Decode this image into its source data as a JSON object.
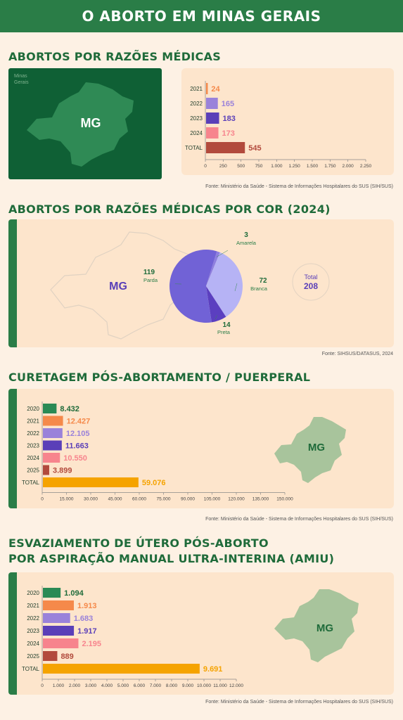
{
  "header": {
    "title": "O aborto em Minas Gerais"
  },
  "sections": {
    "s1": {
      "title": "Abortos por razões médicas",
      "source": "Fonte: Ministério da Saúde - Sistema de Informações Hospitalares do SUS (SIH/SUS)",
      "map_label": "MG",
      "map_caption": "Minas\nGerais"
    },
    "s2": {
      "title": "Abortos por razões médicas por cor (2024)",
      "source": "Fonte: SIHSUS/DATASUS, 2024",
      "map_label": "MG",
      "total_label": "Total",
      "total_value": "208"
    },
    "s3": {
      "title": "Curetagem pós-abortamento / puerperal",
      "source": "Fonte: Ministério da Saúde - Sistema de Informações Hospitalares do SUS (SIH/SUS)",
      "map_label": "MG"
    },
    "s4": {
      "title_line1": "Esvaziamento de útero pós-aborto",
      "title_line2": "por aspiração manual ultra-interina (AMIU)",
      "source": "Fonte: Ministério da Saúde - Sistema de Informações Hospitalares do SUS (SIH/SUS)",
      "map_label": "MG"
    }
  },
  "chart_data": [
    {
      "type": "bar",
      "orientation": "horizontal",
      "categories": [
        "2021",
        "2022",
        "2023",
        "2024",
        "TOTAL"
      ],
      "values": [
        24,
        165,
        183,
        173,
        545
      ],
      "value_labels": [
        "24",
        "165",
        "183",
        "173",
        "545"
      ],
      "colors": [
        "#f5894a",
        "#9a82da",
        "#5a3fb8",
        "#f7848d",
        "#b24a3c"
      ],
      "xlim": [
        0,
        2250
      ],
      "xticks": [
        0,
        250,
        500,
        750,
        1000,
        1250,
        1500,
        1750,
        2000,
        2250
      ],
      "xtick_labels": [
        "0",
        "250",
        "500",
        "750",
        "1.000",
        "1.250",
        "1.500",
        "1.750",
        "2.000",
        "2.250"
      ]
    },
    {
      "type": "pie",
      "labels": [
        "Amarela",
        "Branca",
        "Preta",
        "Parda"
      ],
      "values": [
        3,
        72,
        14,
        119
      ],
      "value_labels": [
        "3",
        "72",
        "14",
        "119"
      ],
      "colors": [
        "#8e7fe0",
        "#b6b3f5",
        "#5b3fc0",
        "#7162d6"
      ]
    },
    {
      "type": "bar",
      "orientation": "horizontal",
      "categories": [
        "2020",
        "2021",
        "2022",
        "2023",
        "2024",
        "2025",
        "TOTAL"
      ],
      "values": [
        8432,
        12427,
        12105,
        11663,
        10550,
        3899,
        59076
      ],
      "value_labels": [
        "8.432",
        "12.427",
        "12.105",
        "11.663",
        "10.550",
        "3.899",
        "59.076"
      ],
      "colors": [
        "#2a8a55",
        "#f5894a",
        "#9a82da",
        "#5a3fb8",
        "#f7848d",
        "#b24a3c",
        "#f5a300"
      ],
      "label_colors": [
        "#1f6b3a",
        "#f5894a",
        "#9a82da",
        "#5a3fb8",
        "#f7848d",
        "#b24a3c",
        "#f5a300"
      ],
      "xlim": [
        0,
        150000
      ],
      "xticks": [
        0,
        15000,
        30000,
        45000,
        60000,
        75000,
        90000,
        105000,
        120000,
        135000,
        150000
      ],
      "xtick_labels": [
        "0",
        "15.000",
        "30.000",
        "45.000",
        "60.000",
        "75.000",
        "90.000",
        "105.000",
        "120.000",
        "135.000",
        "150.000"
      ]
    },
    {
      "type": "bar",
      "orientation": "horizontal",
      "categories": [
        "2020",
        "2021",
        "2022",
        "2023",
        "2024",
        "2025",
        "TOTAL"
      ],
      "values": [
        1094,
        1913,
        1683,
        1917,
        2195,
        889,
        9691
      ],
      "value_labels": [
        "1.094",
        "1.913",
        "1.683",
        "1.917",
        "2.195",
        "889",
        "9.691"
      ],
      "colors": [
        "#2a8a55",
        "#f5894a",
        "#9a82da",
        "#5a3fb8",
        "#f7848d",
        "#b24a3c",
        "#f5a300"
      ],
      "label_colors": [
        "#1f6b3a",
        "#f5894a",
        "#9a82da",
        "#5a3fb8",
        "#f7848d",
        "#b24a3c",
        "#f5a300"
      ],
      "xlim": [
        0,
        12000
      ],
      "xticks": [
        0,
        1000,
        2000,
        3000,
        4000,
        5000,
        6000,
        7000,
        8000,
        9000,
        10000,
        11000,
        12000
      ],
      "xtick_labels": [
        "0",
        "1.000",
        "2.000",
        "3.000",
        "4.000",
        "5.000",
        "6.000",
        "7.000",
        "8.000",
        "9.000",
        "10.000",
        "11.000",
        "12.000"
      ]
    }
  ]
}
